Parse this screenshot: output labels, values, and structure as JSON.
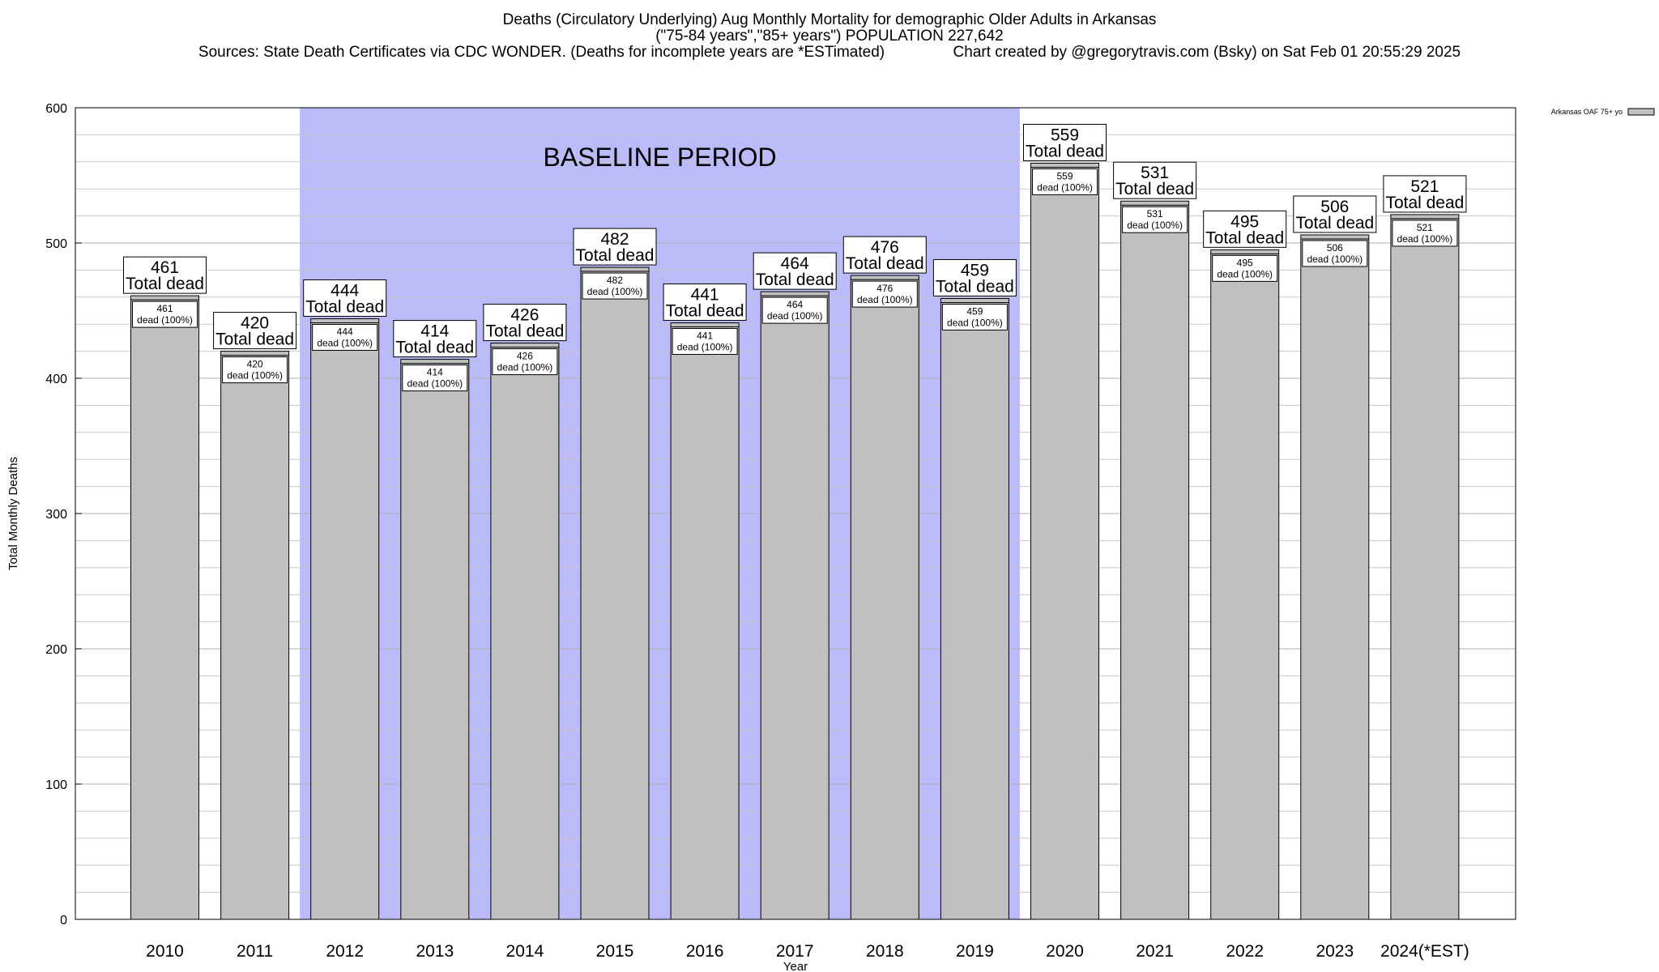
{
  "header": {
    "title_line1": "Deaths (Circulatory Underlying) Aug Monthly Mortality for demographic Older Adults in Arkansas",
    "title_line2": "(\"75-84 years\",\"85+ years\") POPULATION 227,642",
    "title_line3": "Sources: State Death Certificates via CDC WONDER. (Deaths for incomplete years are *ESTimated)                Chart created by @gregorytravis.com (Bsky) on Sat Feb 01 20:55:29 2025"
  },
  "chart_data": {
    "type": "bar",
    "title": "Deaths (Circulatory Underlying) Aug Monthly Mortality for demographic Older Adults in Arkansas",
    "xlabel": "Year",
    "ylabel": "Total Monthly Deaths",
    "ylim": [
      0,
      600
    ],
    "yticks": [
      0,
      100,
      200,
      300,
      400,
      500,
      600
    ],
    "grid": true,
    "categories": [
      "2010",
      "2011",
      "2012",
      "2013",
      "2014",
      "2015",
      "2016",
      "2017",
      "2018",
      "2019",
      "2020",
      "2021",
      "2022",
      "2023",
      "2024(*EST)"
    ],
    "series": [
      {
        "name": "Arkansas OAF 75+ yo",
        "values": [
          461,
          420,
          444,
          414,
          426,
          482,
          441,
          464,
          476,
          459,
          559,
          531,
          495,
          506,
          521
        ]
      }
    ],
    "total_label_suffix": "Total dead",
    "inner_label_suffix": "dead (100%)",
    "baseline": {
      "label": "BASELINE PERIOD",
      "start": "2012",
      "end": "2019",
      "color": "#bbbbfa"
    },
    "bar_color": "#c0c0c0",
    "legend_position": "top-right"
  }
}
